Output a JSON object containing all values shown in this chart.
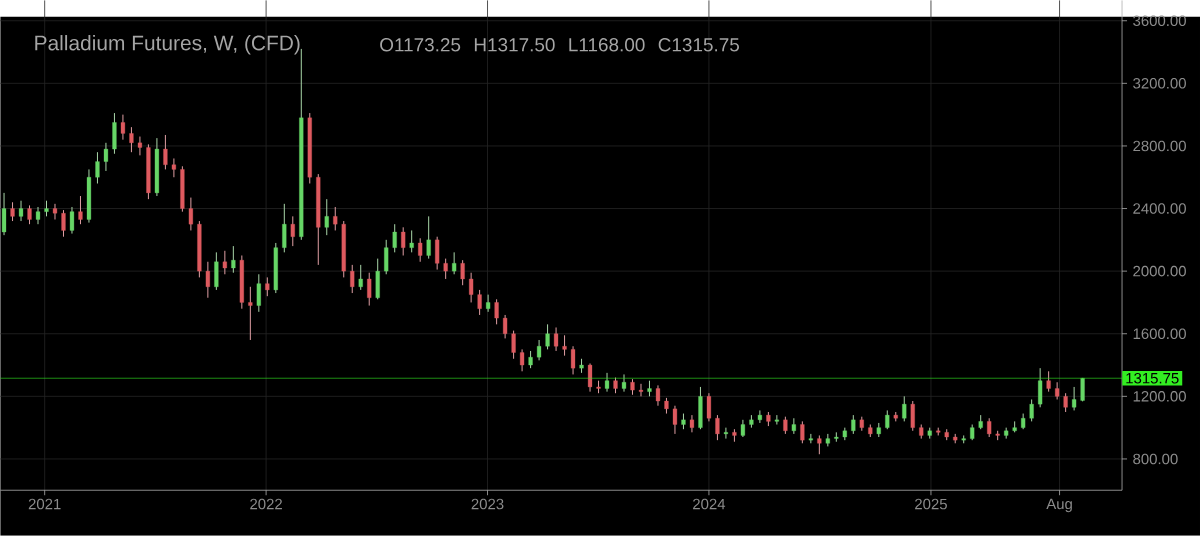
{
  "chart_data": {
    "type": "candlestick",
    "title": "Palladium Futures, W, (CFD)",
    "annotations": [
      "O1173.25",
      "H1317.50",
      "L1168.00",
      "C1315.75"
    ],
    "x": [
      "2020-10-26",
      "2020-11-09",
      "2020-11-23",
      "2020-12-07",
      "2020-12-21",
      "2021-01-04",
      "2021-01-18",
      "2021-02-01",
      "2021-02-15",
      "2021-03-01",
      "2021-03-15",
      "2021-03-29",
      "2021-04-12",
      "2021-04-26",
      "2021-05-10",
      "2021-05-24",
      "2021-06-07",
      "2021-06-21",
      "2021-07-05",
      "2021-07-19",
      "2021-08-02",
      "2021-08-16",
      "2021-08-30",
      "2021-09-13",
      "2021-09-27",
      "2021-10-11",
      "2021-10-25",
      "2021-11-08",
      "2021-11-22",
      "2021-12-06",
      "2021-12-20",
      "2022-01-03",
      "2022-01-17",
      "2022-01-31",
      "2022-02-14",
      "2022-02-28",
      "2022-03-14",
      "2022-03-28",
      "2022-04-11",
      "2022-04-25",
      "2022-05-09",
      "2022-05-23",
      "2022-06-06",
      "2022-06-20",
      "2022-07-04",
      "2022-07-18",
      "2022-08-01",
      "2022-08-15",
      "2022-08-29",
      "2022-09-12",
      "2022-09-26",
      "2022-10-10",
      "2022-10-24",
      "2022-11-07",
      "2022-11-21",
      "2022-12-05",
      "2022-12-19",
      "2023-01-02",
      "2023-01-16",
      "2023-01-30",
      "2023-02-13",
      "2023-02-27",
      "2023-03-13",
      "2023-03-27",
      "2023-04-10",
      "2023-04-24",
      "2023-05-08",
      "2023-05-22",
      "2023-06-05",
      "2023-06-19",
      "2023-07-03",
      "2023-07-17",
      "2023-07-31",
      "2023-08-14",
      "2023-08-28",
      "2023-09-11",
      "2023-09-25",
      "2023-10-09",
      "2023-10-23",
      "2023-11-06",
      "2023-11-20",
      "2023-12-04",
      "2023-12-18",
      "2024-01-01",
      "2024-01-15",
      "2024-01-29",
      "2024-02-12",
      "2024-02-26",
      "2024-03-11",
      "2024-03-25",
      "2024-04-08",
      "2024-04-22",
      "2024-05-06",
      "2024-05-20",
      "2024-06-03",
      "2024-06-17",
      "2024-07-01",
      "2024-07-15",
      "2024-07-29",
      "2024-08-12",
      "2024-08-26",
      "2024-09-09",
      "2024-09-23",
      "2024-10-07",
      "2024-10-21",
      "2024-11-04",
      "2024-11-18",
      "2024-12-02",
      "2024-12-16",
      "2024-12-30",
      "2025-01-13",
      "2025-01-27",
      "2025-02-10",
      "2025-02-24",
      "2025-03-10",
      "2025-03-24",
      "2025-04-07",
      "2025-04-21",
      "2025-05-05",
      "2025-05-19",
      "2025-06-02",
      "2025-06-16",
      "2025-06-30",
      "2025-07-14",
      "2025-07-28",
      "2025-08-11",
      "2025-08-25",
      "2025-09-08"
    ],
    "ohlc": [
      [
        2250,
        2500,
        2230,
        2400
      ],
      [
        2400,
        2440,
        2320,
        2350
      ],
      [
        2350,
        2450,
        2320,
        2400
      ],
      [
        2400,
        2420,
        2300,
        2330
      ],
      [
        2330,
        2410,
        2300,
        2380
      ],
      [
        2380,
        2450,
        2350,
        2400
      ],
      [
        2400,
        2430,
        2330,
        2370
      ],
      [
        2370,
        2390,
        2220,
        2260
      ],
      [
        2260,
        2410,
        2240,
        2380
      ],
      [
        2380,
        2480,
        2300,
        2330
      ],
      [
        2330,
        2650,
        2310,
        2600
      ],
      [
        2600,
        2760,
        2560,
        2700
      ],
      [
        2700,
        2820,
        2640,
        2780
      ],
      [
        2780,
        3010,
        2750,
        2950
      ],
      [
        2950,
        3000,
        2840,
        2880
      ],
      [
        2880,
        2920,
        2760,
        2820
      ],
      [
        2820,
        2860,
        2740,
        2790
      ],
      [
        2790,
        2810,
        2460,
        2500
      ],
      [
        2500,
        2850,
        2480,
        2780
      ],
      [
        2780,
        2870,
        2650,
        2680
      ],
      [
        2680,
        2720,
        2600,
        2650
      ],
      [
        2650,
        2670,
        2380,
        2400
      ],
      [
        2400,
        2470,
        2260,
        2300
      ],
      [
        2300,
        2320,
        1960,
        2000
      ],
      [
        2000,
        2060,
        1830,
        1900
      ],
      [
        1900,
        2120,
        1880,
        2060
      ],
      [
        2060,
        2130,
        1980,
        2020
      ],
      [
        2020,
        2160,
        1990,
        2070
      ],
      [
        2070,
        2100,
        1760,
        1800
      ],
      [
        1800,
        1900,
        1560,
        1780
      ],
      [
        1780,
        1980,
        1740,
        1920
      ],
      [
        1920,
        1960,
        1840,
        1880
      ],
      [
        1880,
        2180,
        1860,
        2150
      ],
      [
        2150,
        2430,
        2120,
        2300
      ],
      [
        2300,
        2350,
        2160,
        2220
      ],
      [
        2220,
        3420,
        2200,
        2980
      ],
      [
        2980,
        3010,
        2560,
        2600
      ],
      [
        2600,
        2620,
        2040,
        2280
      ],
      [
        2280,
        2460,
        2230,
        2350
      ],
      [
        2350,
        2410,
        2260,
        2300
      ],
      [
        2300,
        2320,
        1960,
        2000
      ],
      [
        2000,
        2040,
        1860,
        1900
      ],
      [
        1900,
        2040,
        1880,
        1950
      ],
      [
        1950,
        1990,
        1780,
        1830
      ],
      [
        1830,
        2080,
        1820,
        2000
      ],
      [
        2000,
        2200,
        1980,
        2150
      ],
      [
        2150,
        2300,
        2120,
        2250
      ],
      [
        2250,
        2280,
        2100,
        2150
      ],
      [
        2150,
        2260,
        2120,
        2180
      ],
      [
        2180,
        2210,
        2060,
        2100
      ],
      [
        2100,
        2350,
        2080,
        2200
      ],
      [
        2200,
        2220,
        2010,
        2050
      ],
      [
        2050,
        2080,
        1950,
        2000
      ],
      [
        2000,
        2120,
        1980,
        2050
      ],
      [
        2050,
        2070,
        1910,
        1950
      ],
      [
        1950,
        1990,
        1800,
        1850
      ],
      [
        1850,
        1880,
        1720,
        1760
      ],
      [
        1760,
        1850,
        1740,
        1800
      ],
      [
        1800,
        1820,
        1660,
        1700
      ],
      [
        1700,
        1720,
        1570,
        1600
      ],
      [
        1600,
        1620,
        1440,
        1480
      ],
      [
        1480,
        1500,
        1360,
        1400
      ],
      [
        1400,
        1490,
        1380,
        1450
      ],
      [
        1450,
        1560,
        1430,
        1520
      ],
      [
        1520,
        1660,
        1500,
        1600
      ],
      [
        1600,
        1640,
        1490,
        1520
      ],
      [
        1520,
        1590,
        1460,
        1500
      ],
      [
        1500,
        1520,
        1340,
        1380
      ],
      [
        1380,
        1440,
        1350,
        1400
      ],
      [
        1400,
        1410,
        1230,
        1260
      ],
      [
        1260,
        1300,
        1220,
        1250
      ],
      [
        1250,
        1350,
        1230,
        1300
      ],
      [
        1300,
        1320,
        1220,
        1250
      ],
      [
        1250,
        1340,
        1230,
        1290
      ],
      [
        1290,
        1310,
        1210,
        1240
      ],
      [
        1240,
        1280,
        1200,
        1230
      ],
      [
        1230,
        1300,
        1200,
        1250
      ],
      [
        1250,
        1270,
        1140,
        1170
      ],
      [
        1170,
        1190,
        1090,
        1120
      ],
      [
        1120,
        1140,
        960,
        1020
      ],
      [
        1020,
        1090,
        990,
        1050
      ],
      [
        1050,
        1080,
        970,
        1000
      ],
      [
        1000,
        1260,
        990,
        1200
      ],
      [
        1200,
        1220,
        1040,
        1060
      ],
      [
        1060,
        1080,
        920,
        960
      ],
      [
        960,
        1000,
        930,
        970
      ],
      [
        970,
        990,
        910,
        950
      ],
      [
        950,
        1050,
        940,
        1020
      ],
      [
        1020,
        1080,
        1000,
        1050
      ],
      [
        1050,
        1110,
        1030,
        1080
      ],
      [
        1080,
        1100,
        1010,
        1040
      ],
      [
        1040,
        1080,
        1020,
        1050
      ],
      [
        1050,
        1070,
        960,
        980
      ],
      [
        980,
        1060,
        960,
        1020
      ],
      [
        1020,
        1040,
        900,
        920
      ],
      [
        920,
        960,
        900,
        930
      ],
      [
        930,
        950,
        830,
        900
      ],
      [
        900,
        960,
        880,
        930
      ],
      [
        930,
        970,
        910,
        940
      ],
      [
        940,
        1000,
        920,
        980
      ],
      [
        980,
        1080,
        960,
        1050
      ],
      [
        1050,
        1070,
        980,
        1000
      ],
      [
        1000,
        1020,
        940,
        960
      ],
      [
        960,
        1030,
        940,
        1000
      ],
      [
        1000,
        1110,
        990,
        1080
      ],
      [
        1080,
        1100,
        1040,
        1060
      ],
      [
        1060,
        1200,
        1040,
        1150
      ],
      [
        1150,
        1170,
        980,
        1000
      ],
      [
        1000,
        1020,
        930,
        950
      ],
      [
        950,
        1000,
        930,
        980
      ],
      [
        980,
        1000,
        950,
        970
      ],
      [
        970,
        990,
        920,
        940
      ],
      [
        940,
        960,
        900,
        920
      ],
      [
        920,
        950,
        900,
        930
      ],
      [
        930,
        1020,
        920,
        1000
      ],
      [
        1000,
        1080,
        990,
        1040
      ],
      [
        1040,
        1060,
        940,
        960
      ],
      [
        960,
        980,
        920,
        950
      ],
      [
        950,
        1000,
        930,
        980
      ],
      [
        980,
        1040,
        970,
        1000
      ],
      [
        1000,
        1090,
        990,
        1060
      ],
      [
        1060,
        1180,
        1040,
        1150
      ],
      [
        1150,
        1380,
        1130,
        1300
      ],
      [
        1300,
        1360,
        1230,
        1250
      ],
      [
        1250,
        1290,
        1180,
        1200
      ],
      [
        1200,
        1220,
        1100,
        1130
      ],
      [
        1130,
        1260,
        1110,
        1180
      ],
      [
        1173.25,
        1317.5,
        1168,
        1315.75
      ]
    ],
    "xlim": [
      "2020-10-20",
      "2025-11-12"
    ],
    "ylim": [
      600,
      3730
    ],
    "xticks": [
      {
        "value": "2021",
        "label": "2021"
      },
      {
        "value": "2022",
        "label": "2022"
      },
      {
        "value": "2023",
        "label": "2023"
      },
      {
        "value": "2024",
        "label": "2024"
      },
      {
        "value": "2025",
        "label": "2025"
      },
      {
        "value": "2025-08",
        "label": "Aug"
      }
    ],
    "yticks": [
      {
        "value": 800,
        "label": "800.00"
      },
      {
        "value": 1200,
        "label": "1200.00"
      },
      {
        "value": 1600,
        "label": "1600.00"
      },
      {
        "value": 2000,
        "label": "2000.00"
      },
      {
        "value": 2400,
        "label": "2400.00"
      },
      {
        "value": 2800,
        "label": "2800.00"
      },
      {
        "value": 3200,
        "label": "3200.00"
      },
      {
        "value": 3600,
        "label": "3600.00"
      }
    ],
    "grid": true,
    "ref_lines": [
      {
        "axis": "y",
        "value": 1315.75,
        "label": "1315.75",
        "color": "#33ee22"
      }
    ]
  }
}
